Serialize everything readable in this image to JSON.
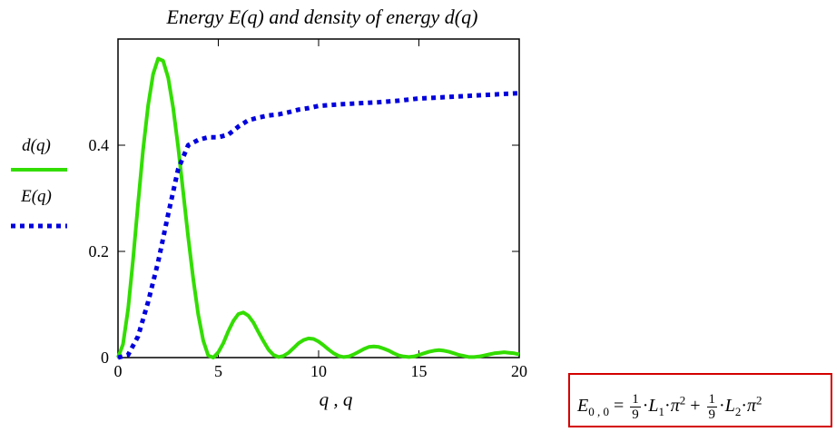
{
  "chart_data": {
    "type": "line",
    "title": "Energy E(q) and density of energy d(q)",
    "xlabel": "q , q",
    "ylabel": "",
    "xlim": [
      0,
      20
    ],
    "ylim": [
      0,
      0.6
    ],
    "x_ticks": [
      "0",
      "5",
      "10",
      "15",
      "20"
    ],
    "y_ticks": [
      "0",
      "0.2",
      "0.4"
    ],
    "grid": false,
    "series": [
      {
        "name": "d(q)",
        "style": "solid",
        "color": "#33dd00",
        "x": [
          0,
          0.25,
          0.5,
          0.75,
          1.0,
          1.25,
          1.5,
          1.75,
          2.0,
          2.25,
          2.5,
          2.75,
          3.0,
          3.25,
          3.5,
          3.75,
          4.0,
          4.25,
          4.5,
          4.75,
          5.0,
          5.25,
          5.5,
          5.75,
          6.0,
          6.25,
          6.5,
          6.75,
          7.0,
          7.25,
          7.5,
          7.75,
          8.0,
          8.25,
          8.5,
          8.75,
          9.0,
          9.25,
          9.5,
          9.75,
          10.0,
          10.25,
          10.5,
          10.75,
          11.0,
          11.25,
          11.5,
          11.75,
          12.0,
          12.25,
          12.5,
          12.75,
          13.0,
          13.25,
          13.5,
          13.75,
          14.0,
          14.25,
          14.5,
          14.75,
          15.0,
          15.25,
          15.5,
          15.75,
          16.0,
          16.25,
          16.5,
          16.75,
          17.0,
          17.25,
          17.5,
          17.75,
          18.0,
          18.25,
          18.5,
          18.75,
          19.0,
          19.25,
          19.5,
          19.75,
          20.0
        ],
        "y": [
          0,
          0.025,
          0.091,
          0.185,
          0.29,
          0.391,
          0.475,
          0.534,
          0.563,
          0.559,
          0.527,
          0.47,
          0.396,
          0.312,
          0.227,
          0.148,
          0.081,
          0.032,
          0.004,
          0.0,
          0.01,
          0.027,
          0.05,
          0.069,
          0.082,
          0.085,
          0.079,
          0.066,
          0.048,
          0.031,
          0.015,
          0.005,
          0.001,
          0.003,
          0.009,
          0.018,
          0.027,
          0.033,
          0.036,
          0.035,
          0.03,
          0.023,
          0.015,
          0.008,
          0.003,
          0.001,
          0.002,
          0.006,
          0.011,
          0.016,
          0.02,
          0.021,
          0.02,
          0.017,
          0.013,
          0.008,
          0.004,
          0.002,
          0.001,
          0.002,
          0.005,
          0.008,
          0.011,
          0.013,
          0.014,
          0.013,
          0.011,
          0.008,
          0.005,
          0.003,
          0.001,
          0.001,
          0.002,
          0.004,
          0.006,
          0.008,
          0.009,
          0.01,
          0.009,
          0.008,
          0.006
        ]
      },
      {
        "name": "E(q)",
        "style": "dotted",
        "color": "#0000dd",
        "x": [
          0,
          0.5,
          1.0,
          1.5,
          2.0,
          2.5,
          3.0,
          3.5,
          4.0,
          4.5,
          5.0,
          5.5,
          6.0,
          6.5,
          7.0,
          7.5,
          8.0,
          8.5,
          9.0,
          9.5,
          10.0,
          11.0,
          12.0,
          13.0,
          14.0,
          15.0,
          16.0,
          17.0,
          18.0,
          19.0,
          20.0
        ],
        "y": [
          0,
          0.005,
          0.04,
          0.105,
          0.18,
          0.27,
          0.355,
          0.4,
          0.41,
          0.415,
          0.415,
          0.42,
          0.435,
          0.447,
          0.452,
          0.456,
          0.458,
          0.462,
          0.467,
          0.47,
          0.474,
          0.477,
          0.479,
          0.481,
          0.484,
          0.488,
          0.49,
          0.492,
          0.494,
          0.496,
          0.498
        ]
      }
    ]
  },
  "legend": {
    "d_label": "d(q)",
    "e_label": "E(q)"
  },
  "formula": {
    "lhs_symbol": "E",
    "lhs_sub": "0 , 0",
    "equals": "=",
    "frac1_num": "1",
    "frac1_den": "9",
    "term1_var": "L",
    "term1_sub": "1",
    "pi": "π",
    "exp1": "2",
    "plus": "+",
    "frac2_num": "1",
    "frac2_den": "9",
    "term2_var": "L",
    "term2_sub": "2",
    "exp2": "2",
    "dot": "·"
  }
}
